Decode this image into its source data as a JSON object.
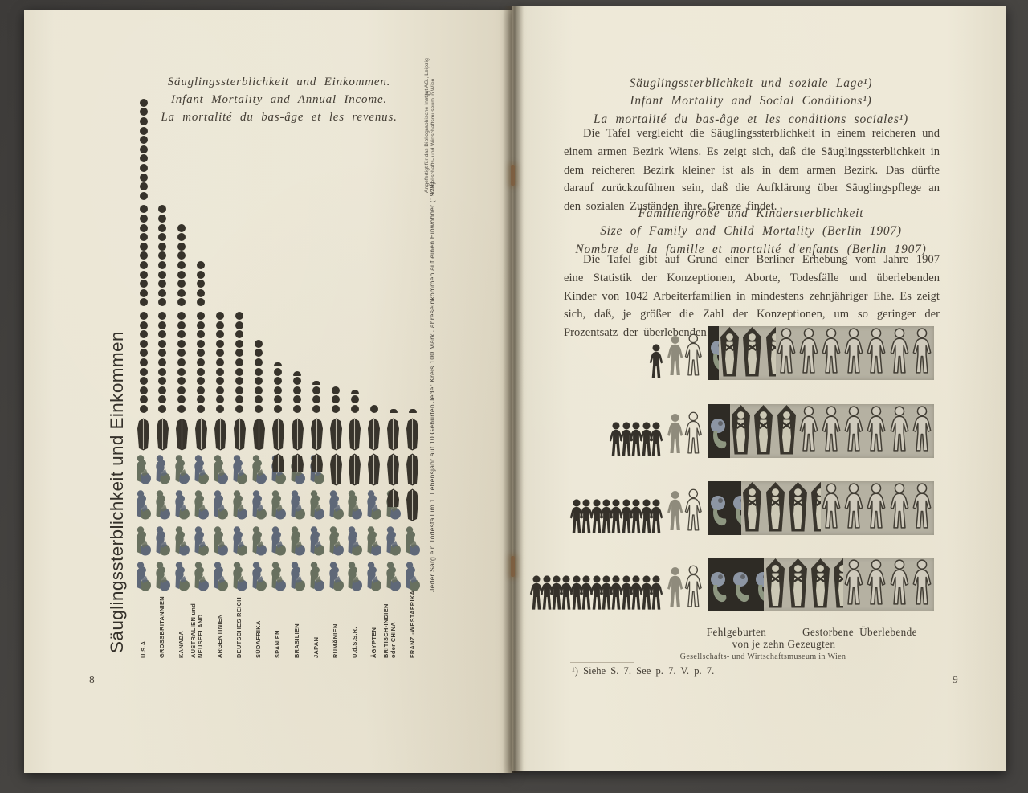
{
  "page_left": {
    "page_number": "8",
    "title_lines": [
      "Säuglingssterblichkeit und Einkommen.",
      "Infant Mortality and Annual Income.",
      "La mortalité du bas-âge et les revenus."
    ],
    "vertical_title": "Säuglingssterblichkeit und Einkommen",
    "credit_line1": "Angefertigt für das Bibliographische Institut AG., Leipzig",
    "credit_line2": "Gesellschafts- und Wirtschaftsmuseum in Wien",
    "credit_symbol": "©",
    "legend_income": "Jeder Kreis 100 Mark Jahreseinkommen auf einen Einwohner (1929)",
    "legend_mortality": "Jeder Sarg ein Todesfall im 1. Lebensjahr auf 10 Geburten",
    "chart": {
      "countries": [
        {
          "name": "U.S.A",
          "income_circles": 33,
          "coffins": 1
        },
        {
          "name": "GROSSBRITANNIEN",
          "income_circles": 22,
          "coffins": 1
        },
        {
          "name": "KANADA",
          "income_circles": 20,
          "coffins": 1
        },
        {
          "name": "AUSTRALIEN und\nNEUSEELAND",
          "income_circles": 16,
          "coffins": 1
        },
        {
          "name": "ARGENTINIEN",
          "income_circles": 11,
          "coffins": 1
        },
        {
          "name": "DEUTSCHES REICH",
          "income_circles": 11,
          "coffins": 1
        },
        {
          "name": "SÜDAFRIKA",
          "income_circles": 8,
          "coffins": 1
        },
        {
          "name": "SPANIEN",
          "income_circles": 5.5,
          "coffins": 1.5
        },
        {
          "name": "BRASILIEN",
          "income_circles": 4.5,
          "coffins": 1.5
        },
        {
          "name": "JAPAN",
          "income_circles": 3.5,
          "coffins": 1.5
        },
        {
          "name": "RUMÄNIEN",
          "income_circles": 3,
          "coffins": 2
        },
        {
          "name": "U.d.S.S.R.",
          "income_circles": 2.5,
          "coffins": 2
        },
        {
          "name": "ÄGYPTEN",
          "income_circles": 1,
          "coffins": 2
        },
        {
          "name": "BRITISCH-INDIEN\noder CHINA",
          "income_circles": 0.5,
          "coffins": 2.5
        },
        {
          "name": "FRANZ.-WESTAFRIKA",
          "income_circles": 0.5,
          "coffins": 3
        }
      ]
    }
  },
  "page_right": {
    "page_number": "9",
    "heading1_lines": [
      "Säuglingssterblichkeit und soziale Lage¹)",
      "Infant Mortality and Social Conditions¹)",
      "La mortalité du bas-âge et les conditions sociales¹)"
    ],
    "para1": "Die Tafel vergleicht die Säuglingssterblichkeit in einem reicheren und einem armen Bezirk Wiens. Es zeigt sich, daß die Säuglingssterblichkeit in dem reicheren Bezirk kleiner ist als in dem armen Bezirk. Das dürfte darauf zurückzuführen sein, daß die Aufklärung über Säuglingspflege an den sozialen Zuständen ihre Grenze findet.",
    "heading2_lines": [
      "Familiengröße und Kindersterblichkeit",
      "Size of Family and Child Mortality (Berlin 1907)",
      "Nombre de la famille et mortalité d'enfants (Berlin 1907)"
    ],
    "para2": "Die Tafel gibt auf Grund einer Berliner Erhebung vom Jahre 1907 eine Statistik der Konzeptionen, Aborte, Todesfälle und überlebenden Kinder von 1042 Arbeiterfamilien in mindestens zehnjähriger Ehe. Es zeigt sich, daß, je größer die Zahl der Konzeptionen, um so geringer der Prozentsatz der überlebenden Kinder ist.",
    "family_rows": [
      {
        "children_icons": 1,
        "fehlgeburten": 0.5,
        "gestorbene": 2.5,
        "ueberlebende": 7
      },
      {
        "children_icons": 5,
        "fehlgeburten": 1,
        "gestorbene": 3,
        "ueberlebende": 6
      },
      {
        "children_icons": 9,
        "fehlgeburten": 1.5,
        "gestorbene": 3.5,
        "ueberlebende": 5
      },
      {
        "children_icons": 13,
        "fehlgeburten": 2.5,
        "gestorbene": 3.5,
        "ueberlebende": 4
      }
    ],
    "captions": {
      "fehlgeburten": "Fehlgeburten",
      "gestorbene": "Gestorbene",
      "ueberlebende": "Überlebende",
      "unit_line": "von je zehn Gezeugten"
    },
    "museum_line": "Gesellschafts- und Wirtschaftsmuseum in Wien",
    "footnote": "¹) Siehe S. 7. See p. 7. V. p. 7.",
    "page_number_right": "9"
  },
  "colors": {
    "paper": "#ece7d6",
    "ink": "#423c33",
    "pictogram_black": "#37332b",
    "figure_blue": "#5f6878",
    "figure_olive": "#68705f",
    "panel_gray": "#b5b1a2",
    "panel_dark": "#2e2b25"
  },
  "chart_data": [
    {
      "type": "pictogram-bar",
      "title": "Säuglingssterblichkeit und Einkommen / Infant Mortality and Annual Income / La mortalité du bas-âge et les revenus",
      "unit_income": "1 Kreis = 100 Mark Jahreseinkommen auf einen Einwohner (1929)",
      "unit_mortality": "1 Sarg = 1 Todesfall im 1. Lebensjahr auf 10 Geburten",
      "categories": [
        "U.S.A",
        "Grossbritannien",
        "Kanada",
        "Australien und Neuseeland",
        "Argentinien",
        "Deutsches Reich",
        "Südafrika",
        "Spanien",
        "Brasilien",
        "Japan",
        "Rumänien",
        "U.d.S.S.R.",
        "Ägypten",
        "Britisch-Indien oder China",
        "Franz.-Westafrika"
      ],
      "series": [
        {
          "name": "Einkommen (Kreise à 100 Mark)",
          "values": [
            33,
            22,
            20,
            16,
            11,
            11,
            8,
            5.5,
            4.5,
            3.5,
            3,
            2.5,
            1,
            0.5,
            0.5
          ]
        },
        {
          "name": "Säuglingssterblichkeit (Särge à 1 Todesfall je 10 Geburten)",
          "values": [
            1,
            1,
            1,
            1,
            1,
            1,
            1,
            1.5,
            1.5,
            1.5,
            2,
            2,
            2,
            2.5,
            3
          ]
        }
      ],
      "legend_position": "right-rotated"
    },
    {
      "type": "pictogram-table",
      "title": "Familiengröße und Kindersterblichkeit (Berlin 1907)",
      "unit": "von je zehn Gezeugten",
      "categories": [
        "Familie mit 1 Kind",
        "Familie mit 5 Kindern",
        "Familie mit 9 Kindern",
        "Familie mit 13 Kindern"
      ],
      "series": [
        {
          "name": "Fehlgeburten",
          "values": [
            0.5,
            1,
            1.5,
            2.5
          ]
        },
        {
          "name": "Gestorbene",
          "values": [
            2.5,
            3,
            3.5,
            3.5
          ]
        },
        {
          "name": "Überlebende",
          "values": [
            7,
            6,
            5,
            4
          ]
        }
      ]
    }
  ]
}
